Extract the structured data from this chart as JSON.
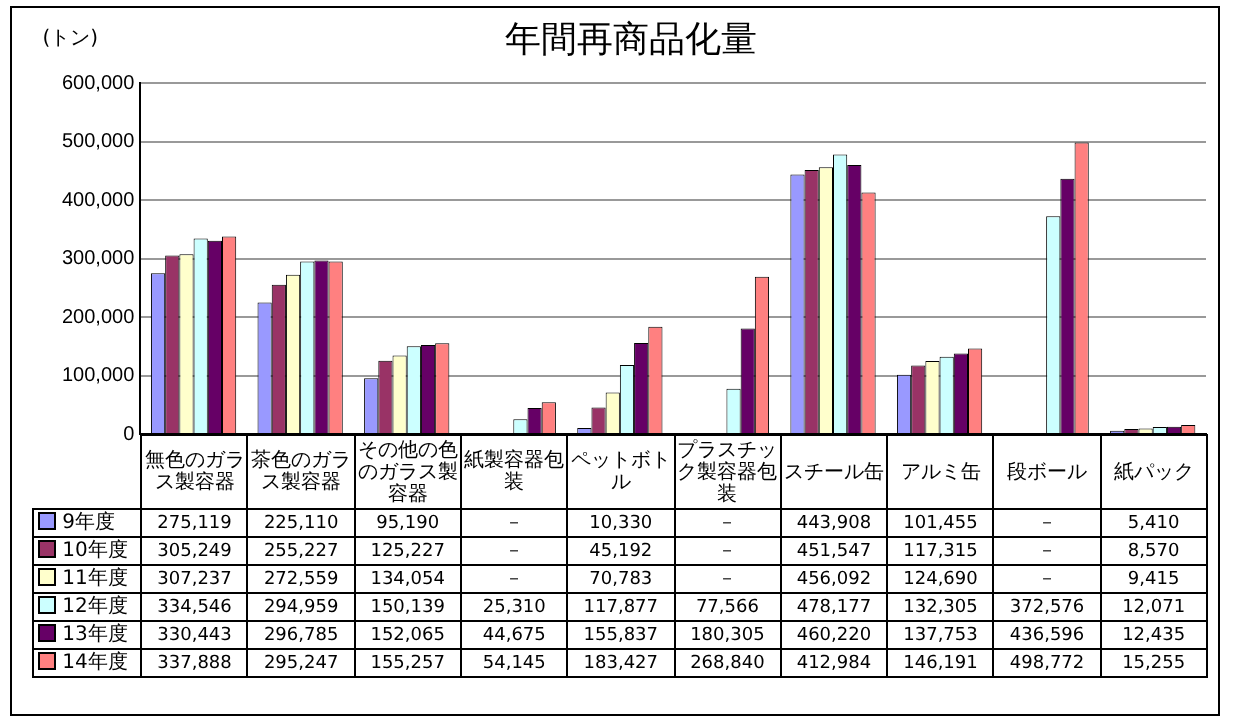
{
  "chart_data": {
    "type": "bar",
    "title": "年間再商品化量",
    "ylabel": "(トン)",
    "categories": [
      "無色のガラス製容器",
      "茶色のガラス製容器",
      "その他の色のガラス製容器",
      "紙製容器包装",
      "ペットボトル",
      "プラスチック製容器包装",
      "スチール缶",
      "アルミ缶",
      "段ボール",
      "紙パック"
    ],
    "series": [
      {
        "name": "9年度",
        "color": "#9999ff",
        "values": [
          275119,
          225110,
          95190,
          null,
          10330,
          null,
          443908,
          101455,
          null,
          5410
        ],
        "value_labels": [
          "275,119",
          "225,110",
          "95,190",
          "－",
          "10,330",
          "－",
          "443,908",
          "101,455",
          "－",
          "5,410"
        ]
      },
      {
        "name": "10年度",
        "color": "#993366",
        "values": [
          305249,
          255227,
          125227,
          null,
          45192,
          null,
          451547,
          117315,
          null,
          8570
        ],
        "value_labels": [
          "305,249",
          "255,227",
          "125,227",
          "－",
          "45,192",
          "－",
          "451,547",
          "117,315",
          "－",
          "8,570"
        ]
      },
      {
        "name": "11年度",
        "color": "#ffffcc",
        "values": [
          307237,
          272559,
          134054,
          null,
          70783,
          null,
          456092,
          124690,
          null,
          9415
        ],
        "value_labels": [
          "307,237",
          "272,559",
          "134,054",
          "－",
          "70,783",
          "－",
          "456,092",
          "124,690",
          "－",
          "9,415"
        ]
      },
      {
        "name": "12年度",
        "color": "#ccffff",
        "values": [
          334546,
          294959,
          150139,
          25310,
          117877,
          77566,
          478177,
          132305,
          372576,
          12071
        ],
        "value_labels": [
          "334,546",
          "294,959",
          "150,139",
          "25,310",
          "117,877",
          "77,566",
          "478,177",
          "132,305",
          "372,576",
          "12,071"
        ]
      },
      {
        "name": "13年度",
        "color": "#660066",
        "values": [
          330443,
          296785,
          152065,
          44675,
          155837,
          180305,
          460220,
          137753,
          436596,
          12435
        ],
        "value_labels": [
          "330,443",
          "296,785",
          "152,065",
          "44,675",
          "155,837",
          "180,305",
          "460,220",
          "137,753",
          "436,596",
          "12,435"
        ]
      },
      {
        "name": "14年度",
        "color": "#ff8080",
        "values": [
          337888,
          295247,
          155257,
          54145,
          183427,
          268840,
          412984,
          146191,
          498772,
          15255
        ],
        "value_labels": [
          "337,888",
          "295,247",
          "155,257",
          "54,145",
          "183,427",
          "268,840",
          "412,984",
          "146,191",
          "498,772",
          "15,255"
        ]
      }
    ],
    "ylim": [
      0,
      600000
    ],
    "yticks": [
      0,
      {
        "value": 100000,
        "label": "100,000"
      },
      {
        "value": 200000,
        "label": "200,000"
      },
      {
        "value": 300000,
        "label": "300,000"
      },
      {
        "value": 400000,
        "label": "400,000"
      },
      {
        "value": 500000,
        "label": "500,000"
      },
      {
        "value": 600000,
        "label": "600,000"
      }
    ],
    "grid": "y",
    "legend": "bottom"
  }
}
